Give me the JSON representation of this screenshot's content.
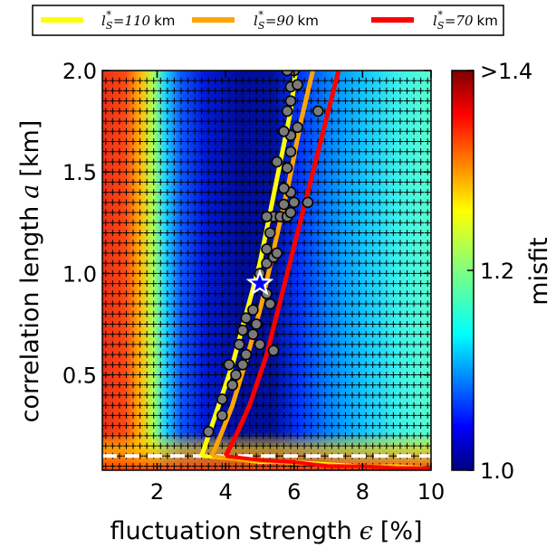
{
  "chart_data": {
    "type": "heatmap",
    "xlabel": "fluctuation strength",
    "xlabel_symbol": "ϵ",
    "xlabel_unit": "[%]",
    "ylabel": "correlation length",
    "ylabel_symbol": "a",
    "ylabel_unit": "[km]",
    "xlim": [
      0.4,
      10.0
    ],
    "ylim": [
      0.03,
      2.0
    ],
    "x_ticks": [
      2,
      4,
      6,
      8,
      10
    ],
    "x_tick_labels": [
      "2",
      "4",
      "6",
      "8",
      "10"
    ],
    "y_ticks": [
      0.5,
      1.0,
      1.5,
      2.0
    ],
    "y_tick_labels": [
      "0.5",
      "1.0",
      "1.5",
      "2.0"
    ],
    "colorbar": {
      "label": "misfit",
      "range": [
        1.0,
        1.4
      ],
      "ticks": [
        1.0,
        1.2,
        1.4
      ],
      "tick_labels": [
        "1.0",
        "1.2",
        ">1.4"
      ],
      "colormap": "jet"
    },
    "legend": {
      "placement": "top, above plot",
      "entries": [
        {
          "label_symbol": "l",
          "label_sub": "S",
          "label_sup": "*",
          "label_value": "=110",
          "label_unit": "km",
          "color": "#ffff00"
        },
        {
          "label_symbol": "l",
          "label_sub": "S",
          "label_sup": "*",
          "label_value": "=90",
          "label_unit": "km",
          "color": "#ffa500"
        },
        {
          "label_symbol": "l",
          "label_sub": "S",
          "label_sup": "*",
          "label_value": "=70",
          "label_unit": "km",
          "color": "#ff0000"
        }
      ]
    },
    "series": [
      {
        "color": "#ffff00",
        "x": [
          3.3,
          3.5,
          3.8,
          4.2,
          4.6,
          5.0,
          5.3,
          5.6,
          5.9,
          6.05
        ],
        "y": [
          0.1,
          0.2,
          0.35,
          0.55,
          0.8,
          1.05,
          1.3,
          1.55,
          1.8,
          2.0
        ]
      },
      {
        "color": "#ffa500",
        "x": [
          3.6,
          3.85,
          4.2,
          4.65,
          5.05,
          5.45,
          5.85,
          6.2,
          6.55
        ],
        "y": [
          0.1,
          0.2,
          0.35,
          0.6,
          0.85,
          1.15,
          1.45,
          1.75,
          2.0
        ]
      },
      {
        "color": "#ff0000",
        "x": [
          4.0,
          4.3,
          4.7,
          5.2,
          5.65,
          6.1,
          6.55,
          7.0,
          7.3
        ],
        "y": [
          0.1,
          0.2,
          0.35,
          0.6,
          0.9,
          1.2,
          1.5,
          1.8,
          2.0
        ]
      }
    ],
    "lower_boundary_tails": [
      {
        "color": "#ffff00",
        "x": [
          3.3,
          4.0,
          5.0,
          6.0,
          7.0,
          8.0,
          9.0,
          10.0
        ],
        "y": [
          0.1,
          0.09,
          0.07,
          0.07,
          0.06,
          0.05,
          0.05,
          0.04
        ]
      },
      {
        "color": "#ffa500",
        "x": [
          3.6,
          4.5,
          5.5,
          6.5,
          7.5,
          8.5,
          10.0
        ],
        "y": [
          0.1,
          0.08,
          0.07,
          0.06,
          0.05,
          0.05,
          0.04
        ]
      },
      {
        "color": "#ff0000",
        "x": [
          4.0,
          5.0,
          6.0,
          7.0,
          8.0,
          9.0,
          10.0
        ],
        "y": [
          0.1,
          0.08,
          0.07,
          0.05,
          0.05,
          0.04,
          0.04
        ]
      }
    ],
    "threshold_line": {
      "y": 0.1,
      "style": "dashed",
      "color": "#ffffff"
    },
    "best_fit": {
      "x": 5.0,
      "y": 0.95,
      "marker": "star"
    },
    "accepted_models": [
      [
        3.5,
        0.22
      ],
      [
        3.9,
        0.3
      ],
      [
        3.9,
        0.38
      ],
      [
        4.2,
        0.45
      ],
      [
        4.3,
        0.5
      ],
      [
        4.1,
        0.55
      ],
      [
        4.5,
        0.55
      ],
      [
        4.6,
        0.6
      ],
      [
        4.4,
        0.65
      ],
      [
        4.5,
        0.72
      ],
      [
        4.6,
        0.78
      ],
      [
        4.8,
        0.7
      ],
      [
        4.9,
        0.75
      ],
      [
        5.0,
        0.65
      ],
      [
        5.4,
        0.62
      ],
      [
        4.8,
        0.82
      ],
      [
        5.3,
        0.85
      ],
      [
        5.2,
        0.9
      ],
      [
        5.0,
        1.0
      ],
      [
        5.2,
        1.05
      ],
      [
        5.2,
        1.12
      ],
      [
        5.4,
        1.08
      ],
      [
        5.5,
        1.1
      ],
      [
        5.3,
        1.2
      ],
      [
        5.4,
        1.28
      ],
      [
        5.6,
        1.28
      ],
      [
        5.2,
        1.28
      ],
      [
        5.7,
        1.34
      ],
      [
        5.8,
        1.28
      ],
      [
        5.9,
        1.3
      ],
      [
        6.0,
        1.35
      ],
      [
        5.9,
        1.4
      ],
      [
        5.7,
        1.42
      ],
      [
        6.4,
        1.35
      ],
      [
        5.5,
        1.55
      ],
      [
        5.8,
        1.52
      ],
      [
        5.9,
        1.6
      ],
      [
        5.9,
        1.68
      ],
      [
        5.7,
        1.7
      ],
      [
        6.1,
        1.72
      ],
      [
        5.8,
        1.8
      ],
      [
        5.9,
        1.85
      ],
      [
        6.7,
        1.8
      ],
      [
        5.9,
        1.92
      ],
      [
        6.1,
        1.93
      ],
      [
        6.0,
        2.0
      ],
      [
        5.8,
        2.0
      ]
    ],
    "grid": "+ markers at sampled parameter points"
  }
}
